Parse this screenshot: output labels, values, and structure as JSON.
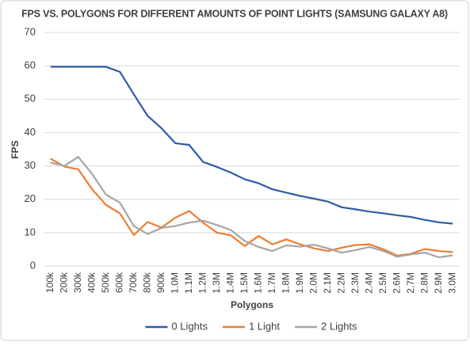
{
  "chart_data": {
    "type": "line",
    "title": "FPS VS. POLYGONS FOR DIFFERENT AMOUNTS OF POINT LIGHTS (SAMSUNG GALAXY A8)",
    "x_label": "Polygons",
    "y_label": "FPS",
    "categories": [
      "100k",
      "200k",
      "300k",
      "400k",
      "500k",
      "600k",
      "700k",
      "800k",
      "900k",
      "1.0M",
      "1.1M",
      "1.2M",
      "1.3M",
      "1.4M",
      "1.5M",
      "1.6M",
      "1.7M",
      "1.8M",
      "1.9M",
      "2.0M",
      "2.1M",
      "2.2M",
      "2.3M",
      "2.4M",
      "2.5M",
      "2.6M",
      "2.7M",
      "2.8M",
      "2.9M",
      "3.0M"
    ],
    "series": [
      {
        "name": "0 Lights",
        "color": "#2f5ba8",
        "values": [
          59.7,
          59.7,
          59.7,
          59.7,
          59.7,
          58.2,
          51.5,
          45,
          41.3,
          36.8,
          36.3,
          31.2,
          29.7,
          28,
          26,
          24.8,
          23,
          22,
          21,
          20.2,
          19.3,
          17.6,
          17,
          16.3,
          15.8,
          15.2,
          14.7,
          13.8,
          13.1,
          12.7
        ]
      },
      {
        "name": "1 Light",
        "color": "#ed7d31",
        "values": [
          32.2,
          29.8,
          29,
          23,
          18.3,
          15.8,
          9.3,
          13.2,
          11.5,
          14.5,
          16.5,
          13,
          10,
          9.2,
          6,
          9,
          6.5,
          8,
          6.5,
          5.3,
          4.5,
          5.5,
          6.3,
          6.5,
          5,
          3.1,
          3.7,
          5.1,
          4.5,
          4.2
        ]
      },
      {
        "name": "2 Lights",
        "color": "#a5a5a5",
        "values": [
          31,
          30,
          32.7,
          27.6,
          21.4,
          19,
          12,
          9.6,
          11.4,
          12,
          13,
          13.6,
          12.3,
          10.8,
          7.5,
          5.7,
          4.5,
          6.2,
          5.8,
          6.4,
          5.3,
          4,
          4.8,
          5.7,
          4.5,
          2.8,
          3.5,
          4,
          2.6,
          3.2
        ]
      }
    ],
    "ylim": [
      0,
      70
    ],
    "yticks": [
      0,
      10,
      20,
      30,
      40,
      50,
      60,
      70
    ],
    "grid": true,
    "legend": "bottom"
  }
}
